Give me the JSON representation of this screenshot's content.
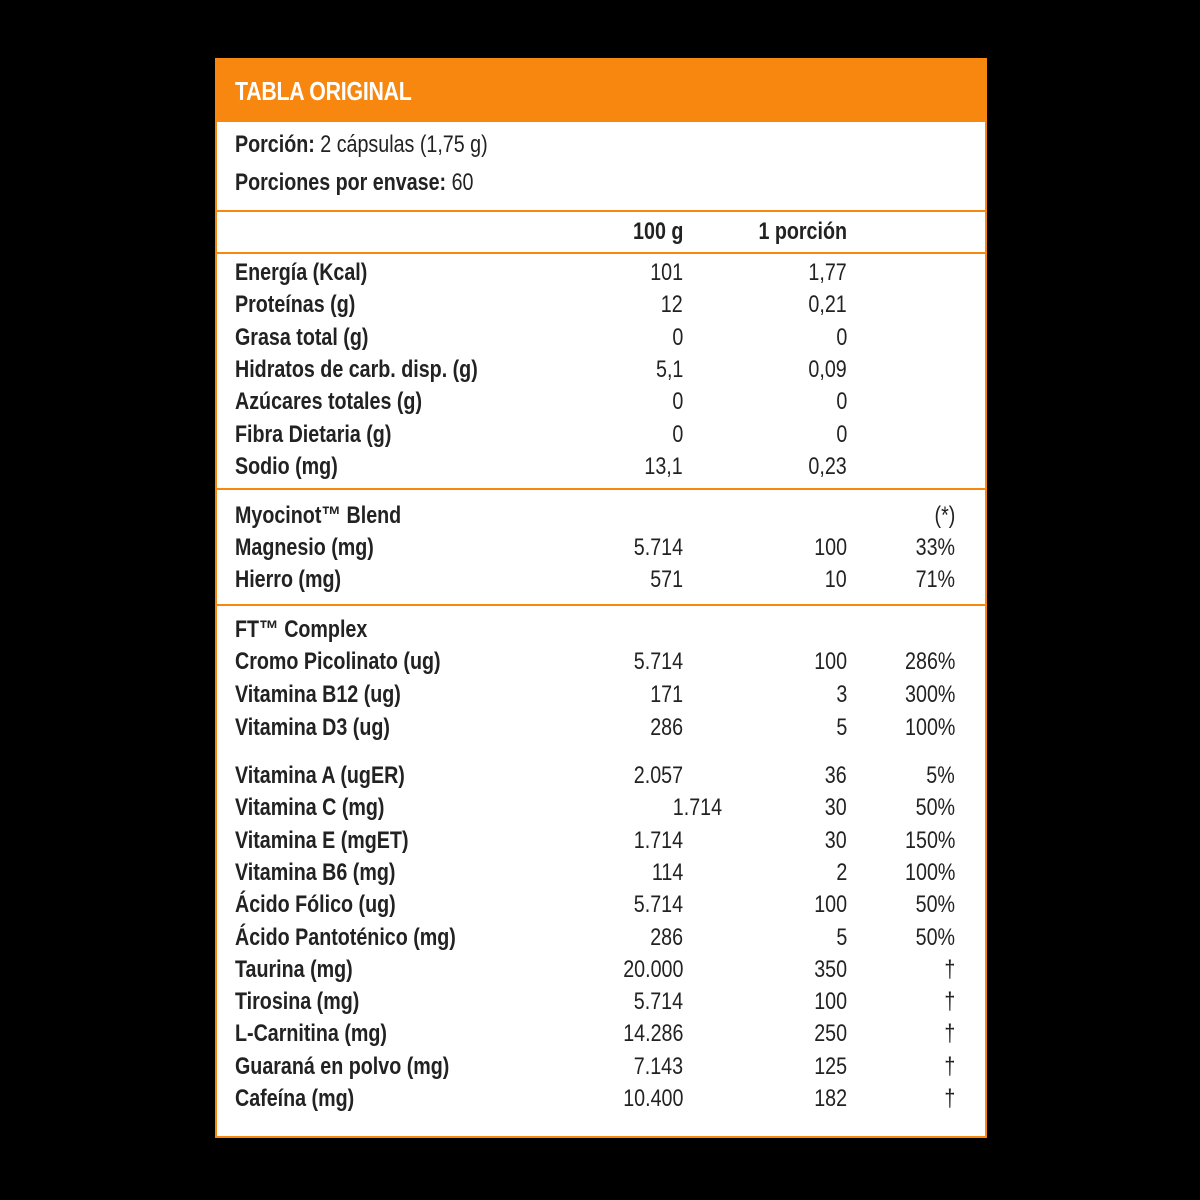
{
  "header": {
    "title": "TABLA ORIGINAL",
    "accent_color": "#f7870f"
  },
  "serving": {
    "portion_label": "Porción:",
    "portion_value": "2 cápsulas (1,75 g)",
    "per_container_label": "Porciones por envase:",
    "per_container_value": "60"
  },
  "columns": {
    "c1": "100 g",
    "c2": "1 porción",
    "c3": ""
  },
  "section1": [
    {
      "name": "Energía (Kcal)",
      "c1": "101",
      "c2": "1,77",
      "c3": ""
    },
    {
      "name": "Proteínas (g)",
      "c1": "12",
      "c2": "0,21",
      "c3": ""
    },
    {
      "name": "Grasa total (g)",
      "c1": "0",
      "c2": "0",
      "c3": ""
    },
    {
      "name": "Hidratos de carb. disp. (g)",
      "c1": "5,1",
      "c2": "0,09",
      "c3": ""
    },
    {
      "name": "Azúcares totales (g)",
      "c1": "0",
      "c2": "0",
      "c3": ""
    },
    {
      "name": "Fibra Dietaria (g)",
      "c1": "0",
      "c2": "0",
      "c3": ""
    },
    {
      "name": "Sodio (mg)",
      "c1": "13,1",
      "c2": "0,23",
      "c3": ""
    }
  ],
  "section2": {
    "title": "Myocinot™ Blend",
    "note": "(*)",
    "rows": [
      {
        "name": "Magnesio (mg)",
        "c1": "5.714",
        "c2": "100",
        "c3": "33%"
      },
      {
        "name": "Hierro (mg)",
        "c1": "571",
        "c2": "10",
        "c3": "71%"
      }
    ]
  },
  "section3": {
    "title": "FT™ Complex",
    "rows": [
      {
        "name": "Cromo Picolinato (ug)",
        "c1": "5.714",
        "c2": "100",
        "c3": "286%"
      },
      {
        "name": "Vitamina B12 (ug)",
        "c1": "171",
        "c2": "3",
        "c3": "300%"
      },
      {
        "name": "Vitamina D3 (ug)",
        "c1": "286",
        "c2": "5",
        "c3": "100%"
      }
    ],
    "rows2": [
      {
        "name": "Vitamina A (ugER)",
        "c1": "2.057",
        "c2": "36",
        "c3": "5%"
      },
      {
        "name": "Vitamina C (mg)",
        "c1": "1.714",
        "c2": "30",
        "c3": "50%"
      },
      {
        "name": "Vitamina E (mgET)",
        "c1": "1.714",
        "c2": "30",
        "c3": "150%"
      },
      {
        "name": "Vitamina B6 (mg)",
        "c1": "114",
        "c2": "2",
        "c3": "100%"
      },
      {
        "name": "Ácido Fólico (ug)",
        "c1": "5.714",
        "c2": "100",
        "c3": "50%"
      },
      {
        "name": "Ácido Pantoténico (mg)",
        "c1": "286",
        "c2": "5",
        "c3": "50%"
      },
      {
        "name": "Taurina (mg)",
        "c1": "20.000",
        "c2": "350",
        "c3": "†"
      },
      {
        "name": "Tirosina (mg)",
        "c1": "5.714",
        "c2": "100",
        "c3": "†"
      },
      {
        "name": "L-Carnitina (mg)",
        "c1": "14.286",
        "c2": "250",
        "c3": "†"
      },
      {
        "name": "Guaraná en polvo (mg)",
        "c1": "7.143",
        "c2": "125",
        "c3": "†"
      },
      {
        "name": "Cafeína (mg)",
        "c1": "10.400",
        "c2": "182",
        "c3": "†"
      }
    ]
  }
}
